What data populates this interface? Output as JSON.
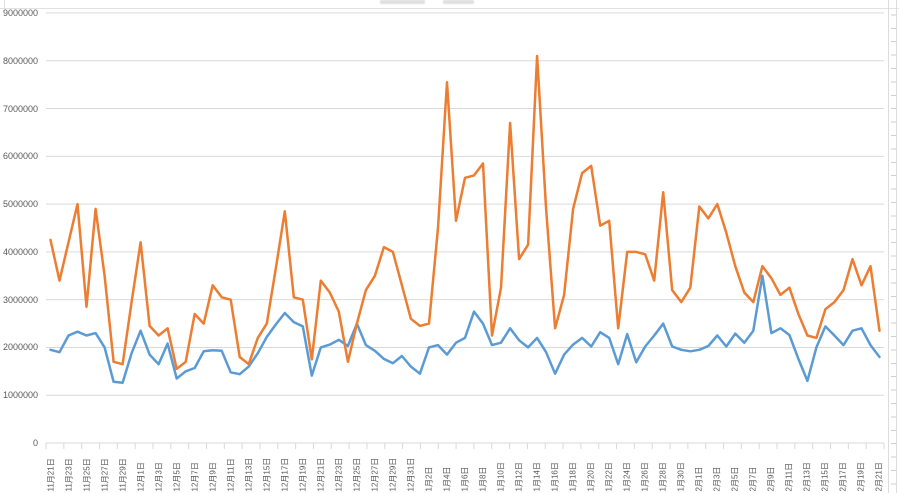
{
  "chart_data": {
    "type": "line",
    "title": "",
    "note_title_cropped": true,
    "legend": "none",
    "grid": "horizontal",
    "gridline_color": "#D9D9D9",
    "axis_text_color": "#595959",
    "ylim": [
      0,
      9000000
    ],
    "y_ticks": [
      0,
      1000000,
      2000000,
      3000000,
      4000000,
      5000000,
      6000000,
      7000000,
      8000000,
      9000000
    ],
    "x_label_interval": 2,
    "x_tick_labels": [
      "11月21日",
      "11月23日",
      "11月25日",
      "11月27日",
      "11月29日",
      "12月1日",
      "12月3日",
      "12月5日",
      "12月7日",
      "12月9日",
      "12月11日",
      "12月13日",
      "12月15日",
      "12月17日",
      "12月19日",
      "12月21日",
      "12月23日",
      "12月25日",
      "12月27日",
      "12月29日",
      "12月31日",
      "1月2日",
      "1月4日",
      "1月6日",
      "1月8日",
      "1月10日",
      "1月12日",
      "1月14日",
      "1月16日",
      "1月18日",
      "1月20日",
      "1月22日",
      "1月24日",
      "1月26日",
      "1月28日",
      "1月30日",
      "2月1日",
      "2月3日",
      "2月5日",
      "2月7日",
      "2月9日",
      "2月11日",
      "2月13日",
      "2月15日",
      "2月17日",
      "2月19日",
      "2月21日"
    ],
    "series": [
      {
        "id": "series1-blue",
        "color": "#5B9BD5",
        "values": [
          1950000,
          1900000,
          2250000,
          2330000,
          2250000,
          2300000,
          2000000,
          1280000,
          1260000,
          1880000,
          2350000,
          1850000,
          1650000,
          2080000,
          1350000,
          1500000,
          1570000,
          1920000,
          1940000,
          1930000,
          1480000,
          1440000,
          1600000,
          1880000,
          2220000,
          2480000,
          2720000,
          2530000,
          2440000,
          1410000,
          2000000,
          2060000,
          2160000,
          2030000,
          2500000,
          2050000,
          1930000,
          1760000,
          1670000,
          1820000,
          1600000,
          1450000,
          2000000,
          2050000,
          1850000,
          2100000,
          2200000,
          2750000,
          2500000,
          2050000,
          2100000,
          2400000,
          2150000,
          2000000,
          2200000,
          1900000,
          1450000,
          1850000,
          2060000,
          2200000,
          2020000,
          2320000,
          2200000,
          1650000,
          2280000,
          1690000,
          2020000,
          2250000,
          2500000,
          2020000,
          1950000,
          1920000,
          1950000,
          2030000,
          2250000,
          2020000,
          2290000,
          2100000,
          2350000,
          3500000,
          2300000,
          2400000,
          2260000,
          1760000,
          1300000,
          2000000,
          2440000,
          2250000,
          2050000,
          2350000,
          2400000,
          2050000,
          1800000
        ]
      },
      {
        "id": "series2-orange",
        "color": "#ED7D31",
        "values": [
          4250000,
          3400000,
          4200000,
          5000000,
          2850000,
          4900000,
          3500000,
          1700000,
          1650000,
          2950000,
          4200000,
          2450000,
          2250000,
          2400000,
          1550000,
          1700000,
          2700000,
          2500000,
          3300000,
          3050000,
          3000000,
          1800000,
          1650000,
          2200000,
          2500000,
          3650000,
          4850000,
          3050000,
          3000000,
          1750000,
          3400000,
          3150000,
          2750000,
          1700000,
          2500000,
          3200000,
          3500000,
          4100000,
          4000000,
          3300000,
          2600000,
          2450000,
          2500000,
          4500000,
          7550000,
          4650000,
          5550000,
          5600000,
          5850000,
          2250000,
          3250000,
          6700000,
          3850000,
          4150000,
          8100000,
          4900000,
          2400000,
          3100000,
          4900000,
          5650000,
          5800000,
          4550000,
          4650000,
          2400000,
          4000000,
          4000000,
          3950000,
          3400000,
          5250000,
          3200000,
          2950000,
          3250000,
          4950000,
          4700000,
          5000000,
          4400000,
          3700000,
          3150000,
          2950000,
          3700000,
          3450000,
          3100000,
          3250000,
          2700000,
          2250000,
          2200000,
          2800000,
          2950000,
          3200000,
          3850000,
          3300000,
          3700000,
          2350000
        ]
      }
    ]
  }
}
